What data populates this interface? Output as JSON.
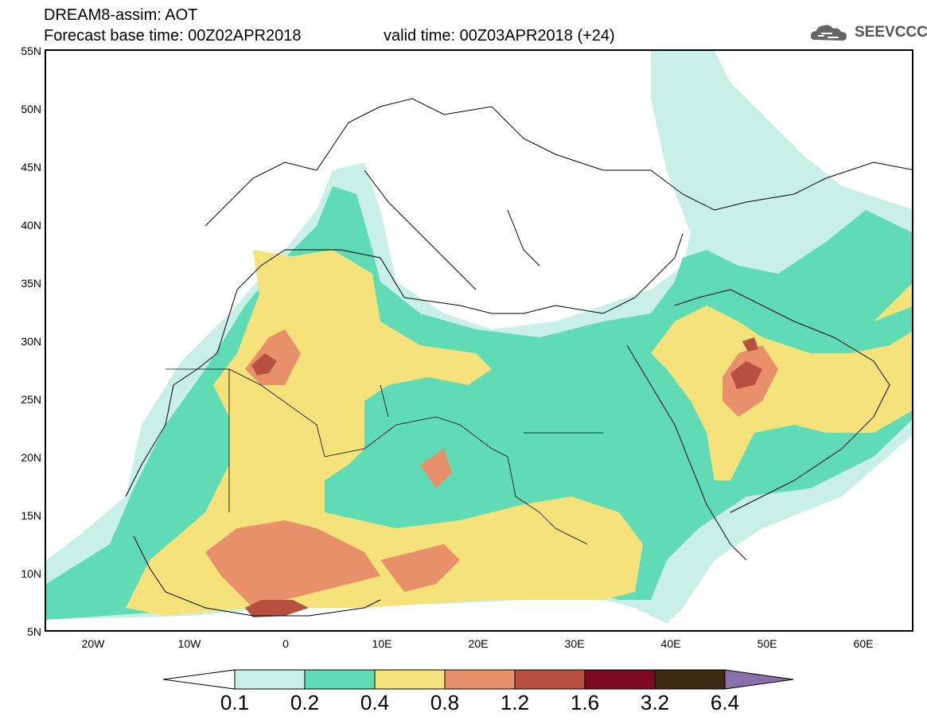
{
  "header": {
    "title": "DREAM8-assim: AOT",
    "base_time": "Forecast base time: 00Z02APR2018",
    "valid_time": "valid time: 00Z03APR2018 (+24)",
    "logo_text": "SEEVCCC"
  },
  "map": {
    "lat_labels": [
      "55N",
      "50N",
      "45N",
      "40N",
      "35N",
      "30N",
      "25N",
      "20N",
      "15N",
      "10N",
      "5N"
    ],
    "lon_labels": [
      "20W",
      "10W",
      "0",
      "10E",
      "20E",
      "30E",
      "40E",
      "50E",
      "60E"
    ],
    "extent": {
      "lon_min": -25,
      "lon_max": 65,
      "lat_min": 5,
      "lat_max": 55
    }
  },
  "colorbar": {
    "labels": [
      "0.1",
      "0.2",
      "0.4",
      "0.8",
      "1.2",
      "1.6",
      "3.2",
      "6.4"
    ],
    "colors": [
      "#ffffff",
      "#c9f0e6",
      "#5fdcb5",
      "#f6e27a",
      "#e8906a",
      "#b8503f",
      "#7e0a22",
      "#3f2a14",
      "#8b6fa8"
    ]
  }
}
